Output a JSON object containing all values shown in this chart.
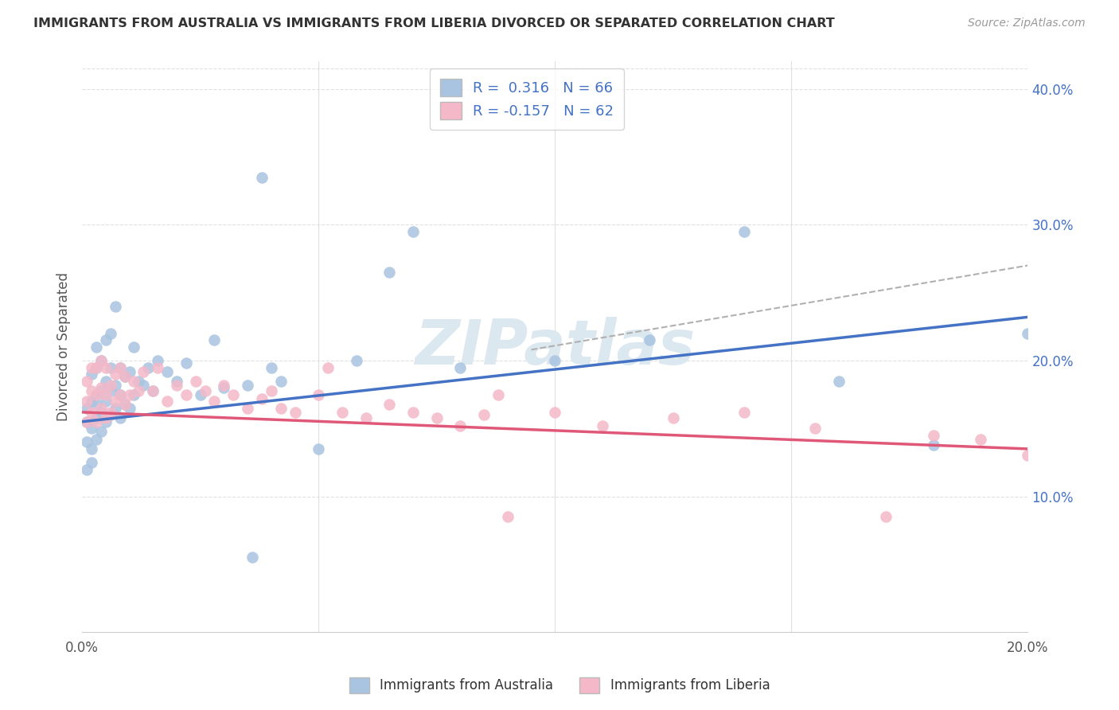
{
  "title": "IMMIGRANTS FROM AUSTRALIA VS IMMIGRANTS FROM LIBERIA DIVORCED OR SEPARATED CORRELATION CHART",
  "source": "Source: ZipAtlas.com",
  "ylabel": "Divorced or Separated",
  "xlim": [
    0.0,
    0.2
  ],
  "ylim": [
    0.0,
    0.42
  ],
  "color_australia": "#a8c4e0",
  "color_liberia": "#f4b8c8",
  "trend_australia_color": "#4472c4",
  "trend_liberia_color": "#e05878",
  "trend_dashed_color": "#b0b0b0",
  "legend_r1_label": "R =  0.316   N = 66",
  "legend_r2_label": "R = -0.157   N = 62",
  "legend_text_color": "#4472c4",
  "watermark": "ZIPatlas",
  "watermark_color": "#dce8f0",
  "background_color": "#ffffff",
  "grid_color": "#e0e0e0",
  "title_color": "#333333",
  "source_color": "#999999",
  "axis_text_color": "#4472c4",
  "ylabel_color": "#555555",
  "blue_line_x0": 0.0,
  "blue_line_y0": 0.155,
  "blue_line_x1": 0.2,
  "blue_line_y1": 0.232,
  "pink_line_x0": 0.0,
  "pink_line_y0": 0.162,
  "pink_line_x1": 0.2,
  "pink_line_y1": 0.135,
  "dash_line_x0": 0.095,
  "dash_line_y0": 0.208,
  "dash_line_x1": 0.2,
  "dash_line_y1": 0.27,
  "australia_x": [
    0.001,
    0.001,
    0.001,
    0.001,
    0.002,
    0.002,
    0.002,
    0.002,
    0.002,
    0.003,
    0.003,
    0.003,
    0.003,
    0.003,
    0.003,
    0.004,
    0.004,
    0.004,
    0.004,
    0.005,
    0.005,
    0.005,
    0.005,
    0.006,
    0.006,
    0.006,
    0.006,
    0.007,
    0.007,
    0.007,
    0.008,
    0.008,
    0.008,
    0.009,
    0.009,
    0.01,
    0.01,
    0.011,
    0.011,
    0.012,
    0.013,
    0.014,
    0.015,
    0.016,
    0.018,
    0.02,
    0.022,
    0.025,
    0.028,
    0.03,
    0.035,
    0.036,
    0.038,
    0.04,
    0.042,
    0.05,
    0.058,
    0.065,
    0.07,
    0.08,
    0.1,
    0.12,
    0.14,
    0.16,
    0.18,
    0.2
  ],
  "australia_y": [
    0.14,
    0.155,
    0.12,
    0.165,
    0.15,
    0.135,
    0.17,
    0.19,
    0.125,
    0.158,
    0.168,
    0.142,
    0.175,
    0.195,
    0.21,
    0.148,
    0.162,
    0.178,
    0.2,
    0.155,
    0.17,
    0.185,
    0.215,
    0.16,
    0.178,
    0.195,
    0.22,
    0.165,
    0.182,
    0.24,
    0.158,
    0.175,
    0.195,
    0.168,
    0.188,
    0.165,
    0.192,
    0.175,
    0.21,
    0.185,
    0.182,
    0.195,
    0.178,
    0.2,
    0.192,
    0.185,
    0.198,
    0.175,
    0.215,
    0.18,
    0.182,
    0.055,
    0.335,
    0.195,
    0.185,
    0.135,
    0.2,
    0.265,
    0.295,
    0.195,
    0.2,
    0.215,
    0.295,
    0.185,
    0.138,
    0.22
  ],
  "liberia_x": [
    0.001,
    0.001,
    0.001,
    0.002,
    0.002,
    0.002,
    0.003,
    0.003,
    0.003,
    0.004,
    0.004,
    0.004,
    0.005,
    0.005,
    0.005,
    0.006,
    0.006,
    0.007,
    0.007,
    0.008,
    0.008,
    0.009,
    0.009,
    0.01,
    0.011,
    0.012,
    0.013,
    0.015,
    0.016,
    0.018,
    0.02,
    0.022,
    0.024,
    0.026,
    0.028,
    0.03,
    0.032,
    0.035,
    0.038,
    0.04,
    0.042,
    0.045,
    0.05,
    0.052,
    0.055,
    0.06,
    0.065,
    0.07,
    0.075,
    0.08,
    0.085,
    0.088,
    0.09,
    0.1,
    0.11,
    0.125,
    0.14,
    0.155,
    0.17,
    0.18,
    0.19,
    0.2
  ],
  "liberia_y": [
    0.155,
    0.17,
    0.185,
    0.162,
    0.178,
    0.195,
    0.155,
    0.175,
    0.195,
    0.165,
    0.18,
    0.2,
    0.158,
    0.175,
    0.195,
    0.162,
    0.182,
    0.17,
    0.19,
    0.175,
    0.195,
    0.168,
    0.188,
    0.175,
    0.185,
    0.178,
    0.192,
    0.178,
    0.195,
    0.17,
    0.182,
    0.175,
    0.185,
    0.178,
    0.17,
    0.182,
    0.175,
    0.165,
    0.172,
    0.178,
    0.165,
    0.162,
    0.175,
    0.195,
    0.162,
    0.158,
    0.168,
    0.162,
    0.158,
    0.152,
    0.16,
    0.175,
    0.085,
    0.162,
    0.152,
    0.158,
    0.162,
    0.15,
    0.085,
    0.145,
    0.142,
    0.13
  ]
}
